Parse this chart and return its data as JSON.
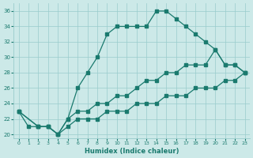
{
  "xlabel": "Humidex (Indice chaleur)",
  "background_color": "#cce9e8",
  "grid_color": "#99cccc",
  "line_color": "#1a7a6e",
  "xlim": [
    -0.5,
    23.5
  ],
  "ylim": [
    19.5,
    37
  ],
  "xticks": [
    0,
    1,
    2,
    3,
    4,
    5,
    6,
    7,
    8,
    9,
    10,
    11,
    12,
    13,
    14,
    15,
    16,
    17,
    18,
    19,
    20,
    21,
    22,
    23
  ],
  "yticks": [
    20,
    22,
    24,
    26,
    28,
    30,
    32,
    34,
    36
  ],
  "line1_x": [
    0,
    1,
    2,
    3,
    4,
    5,
    6,
    7,
    8,
    9,
    10,
    11,
    12,
    13,
    14,
    15,
    16,
    17,
    18,
    19,
    20,
    21,
    22,
    23
  ],
  "line1_y": [
    23,
    21,
    21,
    21,
    20,
    22,
    26,
    28,
    30,
    33,
    34,
    34,
    34,
    34,
    36,
    36,
    35,
    34,
    33,
    32,
    31,
    29,
    29,
    28
  ],
  "line2_x": [
    0,
    2,
    3,
    4,
    5,
    6,
    7,
    8,
    9,
    10,
    11,
    12,
    13,
    14,
    15,
    16,
    17,
    18,
    19,
    20,
    21,
    22,
    23
  ],
  "line2_y": [
    23,
    21,
    21,
    20,
    21,
    22,
    22,
    22,
    23,
    23,
    23,
    24,
    24,
    24,
    25,
    25,
    25,
    26,
    26,
    26,
    27,
    27,
    28
  ],
  "line3_x": [
    0,
    2,
    3,
    4,
    5,
    6,
    7,
    8,
    9,
    10,
    11,
    12,
    13,
    14,
    15,
    16,
    17,
    18,
    19,
    20,
    21,
    22,
    23
  ],
  "line3_y": [
    23,
    21,
    21,
    20,
    22,
    23,
    23,
    24,
    24,
    25,
    25,
    26,
    27,
    27,
    28,
    28,
    29,
    29,
    29,
    31,
    29,
    29,
    28
  ]
}
